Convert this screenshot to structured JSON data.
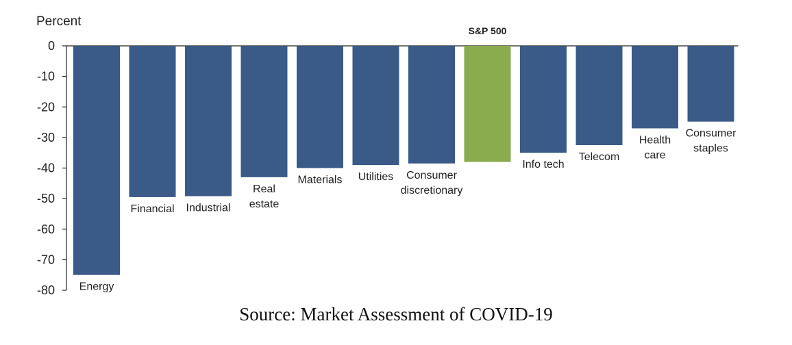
{
  "chart_data": {
    "type": "bar",
    "ylabel": "Percent",
    "ylim": [
      -80,
      0
    ],
    "yticks": [
      0,
      -10,
      -20,
      -30,
      -40,
      -50,
      -60,
      -70,
      -80
    ],
    "categories": [
      [
        "Energy"
      ],
      [
        "Financial"
      ],
      [
        "Industrial"
      ],
      [
        "Real",
        "estate"
      ],
      [
        "Materials"
      ],
      [
        "Utilities"
      ],
      [
        "Consumer",
        "discretionary"
      ],
      [],
      [
        "Info tech"
      ],
      [
        "Telecom"
      ],
      [
        "Health",
        "care"
      ],
      [
        "Consumer",
        "staples"
      ]
    ],
    "values": [
      -75,
      -49.5,
      -49.2,
      -43,
      -40,
      -39,
      -38.5,
      -38,
      -35,
      -32.5,
      -27,
      -24.8
    ],
    "highlight": {
      "index": 7,
      "label": "S&P 500",
      "color": "#8aab4e"
    },
    "bar_color": "#3a5a88",
    "grid": false,
    "legend": "none"
  },
  "caption": "Source: Market Assessment of COVID-19"
}
